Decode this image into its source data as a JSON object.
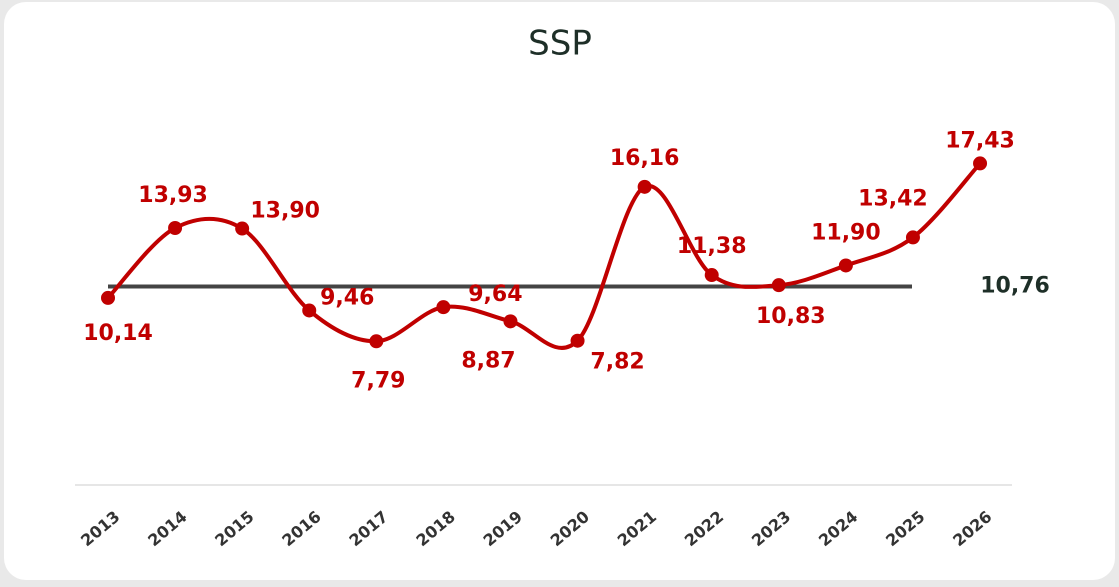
{
  "chart_data": {
    "type": "line",
    "title": "SSP",
    "categories": [
      "2013",
      "2014",
      "2015",
      "2016",
      "2017",
      "2018",
      "2019",
      "2020",
      "2021",
      "2022",
      "2023",
      "2024",
      "2025",
      "2026"
    ],
    "series": [
      {
        "name": "SSP",
        "color": "#c00000",
        "values": [
          10.14,
          13.93,
          13.9,
          9.46,
          7.79,
          9.64,
          8.87,
          7.82,
          16.16,
          11.38,
          10.83,
          11.9,
          13.42,
          17.43
        ],
        "value_labels": [
          "10,14",
          "13,93",
          "13,90",
          "9,46",
          "7,79",
          "9,64",
          "8,87",
          "7,82",
          "16,16",
          "11,38",
          "10,83",
          "11,90",
          "13,42",
          "17,43"
        ]
      }
    ],
    "reference_line": {
      "value": 10.76,
      "label": "10,76",
      "color": "#444444"
    },
    "ylim": [
      0,
      20
    ]
  }
}
